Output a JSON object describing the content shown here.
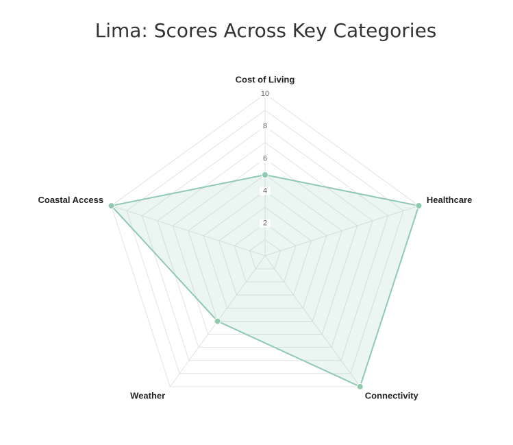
{
  "chart_data": {
    "type": "radar",
    "title": "Lima: Scores Across Key Categories",
    "categories": [
      "Cost of Living",
      "Healthcare",
      "Connectivity",
      "Weather",
      "Coastal Access"
    ],
    "series": [
      {
        "values": [
          5,
          10,
          10,
          5,
          10
        ]
      }
    ],
    "r_range": [
      0,
      10
    ],
    "r_ticks": [
      "2",
      "4",
      "6",
      "8",
      "10"
    ],
    "grid": true,
    "legend": "none",
    "colors": {
      "line": "#8fcab0",
      "fill": "rgba(143, 202, 176, 0.18)",
      "point": "#8fcab0",
      "grid": "#e2e2e2"
    }
  }
}
